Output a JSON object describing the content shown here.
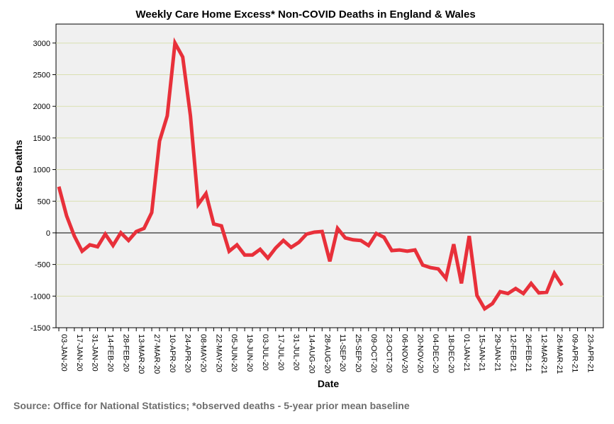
{
  "chart_data": {
    "type": "line",
    "title": "Weekly Care Home Excess* Non-COVID Deaths in England & Wales",
    "xlabel": "Date",
    "ylabel": "Excess Deaths",
    "ylim": [
      -1500,
      3300
    ],
    "yticks": [
      -1500,
      -1000,
      -500,
      0,
      500,
      1000,
      1500,
      2000,
      2500,
      3000
    ],
    "xtick_labels": [
      "03-JAN-20",
      "17-JAN-20",
      "31-JAN-20",
      "14-FEB-20",
      "28-FEB-20",
      "13-MAR-20",
      "27-MAR-20",
      "10-APR-20",
      "24-APR-20",
      "08-MAY-20",
      "22-MAY-20",
      "05-JUN-20",
      "19-JUN-20",
      "03-JUL-20",
      "17-JUL-20",
      "31-JUL-20",
      "14-AUG-20",
      "28-AUG-20",
      "11-SEP-20",
      "25-SEP-20",
      "09-OCT-20",
      "23-OCT-20",
      "06-NOV-20",
      "20-NOV-20",
      "04-DEC-20",
      "18-DEC-20",
      "01-JAN-21",
      "15-JAN-21",
      "29-JAN-21",
      "12-FEB-21",
      "26-FEB-21",
      "12-MAR-21",
      "26-MAR-21",
      "09-APR-21",
      "23-APR-21"
    ],
    "x_weeks_total": 69,
    "grid": true,
    "reference_line": 0,
    "series": [
      {
        "name": "Excess Deaths",
        "color": "#e8303a",
        "values": [
          730,
          270,
          -50,
          -290,
          -190,
          -220,
          -20,
          -200,
          0,
          -120,
          20,
          70,
          320,
          1450,
          1850,
          3000,
          2780,
          1850,
          450,
          620,
          140,
          110,
          -290,
          -190,
          -350,
          -350,
          -260,
          -400,
          -240,
          -120,
          -230,
          -150,
          -20,
          10,
          20,
          -450,
          70,
          -80,
          -110,
          -120,
          -200,
          -10,
          -70,
          -280,
          -270,
          -290,
          -270,
          -510,
          -550,
          -570,
          -720,
          -180,
          -800,
          -50,
          -990,
          -1200,
          -1120,
          -930,
          -960,
          -880,
          -960,
          -800,
          -950,
          -940,
          -640,
          -830
        ]
      }
    ]
  },
  "source_text": "Source: Office for National Statistics; *observed deaths - 5-year prior mean baseline",
  "colors": {
    "plot_background": "#f0f0f0",
    "gridline": "#d9dfb0",
    "line": "#e8303a"
  }
}
